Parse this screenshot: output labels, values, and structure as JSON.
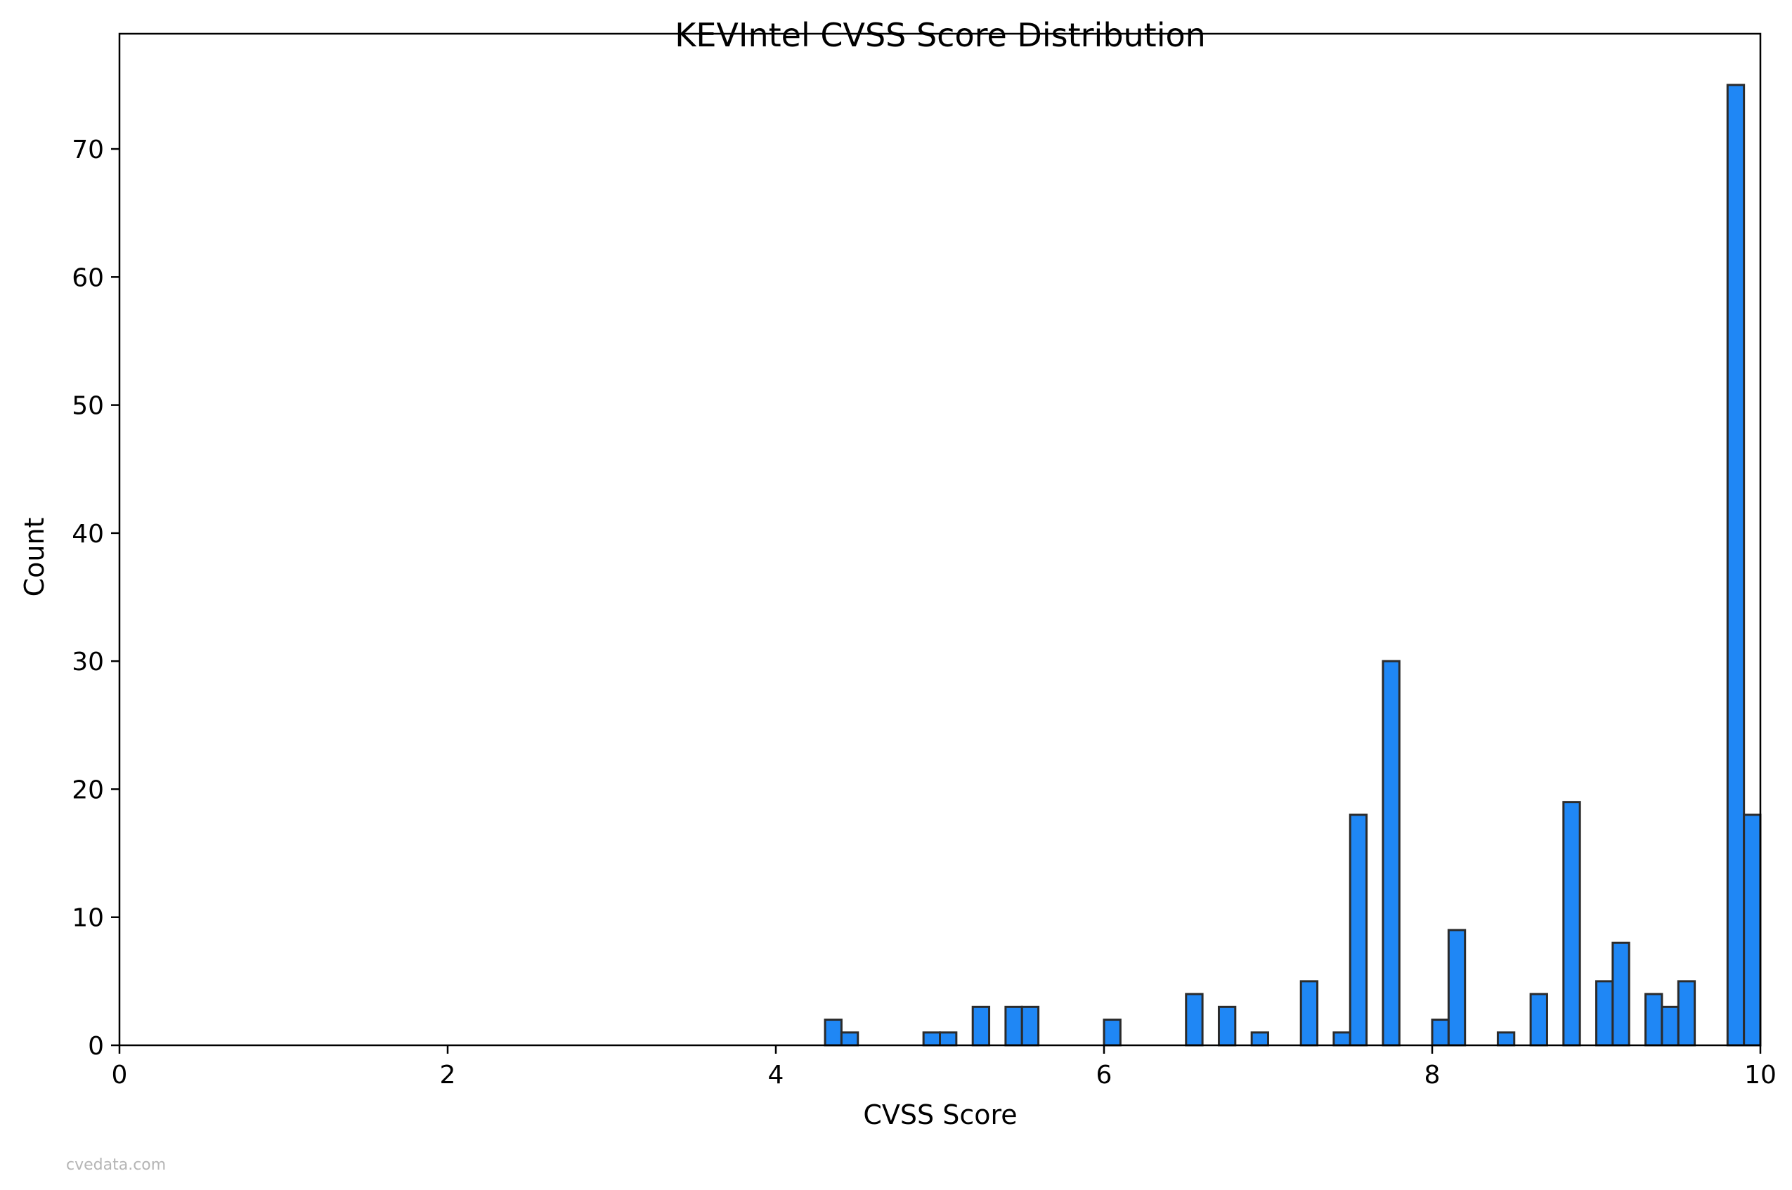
{
  "chart_data": {
    "type": "bar",
    "title": "KEVIntel CVSS Score Distribution",
    "xlabel": "CVSS Score",
    "ylabel": "Count",
    "xlim": [
      0,
      10
    ],
    "ylim": [
      0,
      79
    ],
    "xticks": [
      0,
      2,
      4,
      6,
      8,
      10
    ],
    "yticks": [
      0,
      10,
      20,
      30,
      40,
      50,
      60,
      70
    ],
    "bin_width": 0.1,
    "bar_color": "#1f87f5",
    "edge_color": "#2b2b2b",
    "grid": false,
    "bins": [
      {
        "x": 4.3,
        "count": 2
      },
      {
        "x": 4.4,
        "count": 1
      },
      {
        "x": 4.9,
        "count": 1
      },
      {
        "x": 5.0,
        "count": 1
      },
      {
        "x": 5.2,
        "count": 3
      },
      {
        "x": 5.4,
        "count": 3
      },
      {
        "x": 5.5,
        "count": 3
      },
      {
        "x": 6.0,
        "count": 2
      },
      {
        "x": 6.5,
        "count": 4
      },
      {
        "x": 6.7,
        "count": 3
      },
      {
        "x": 6.9,
        "count": 1
      },
      {
        "x": 7.2,
        "count": 5
      },
      {
        "x": 7.4,
        "count": 1
      },
      {
        "x": 7.5,
        "count": 18
      },
      {
        "x": 7.7,
        "count": 30
      },
      {
        "x": 8.0,
        "count": 2
      },
      {
        "x": 8.1,
        "count": 9
      },
      {
        "x": 8.4,
        "count": 1
      },
      {
        "x": 8.6,
        "count": 4
      },
      {
        "x": 8.8,
        "count": 19
      },
      {
        "x": 9.0,
        "count": 5
      },
      {
        "x": 9.1,
        "count": 8
      },
      {
        "x": 9.3,
        "count": 4
      },
      {
        "x": 9.4,
        "count": 3
      },
      {
        "x": 9.5,
        "count": 5
      },
      {
        "x": 9.8,
        "count": 75
      },
      {
        "x": 9.9,
        "count": 18
      }
    ]
  },
  "watermark": "cvedata.com"
}
